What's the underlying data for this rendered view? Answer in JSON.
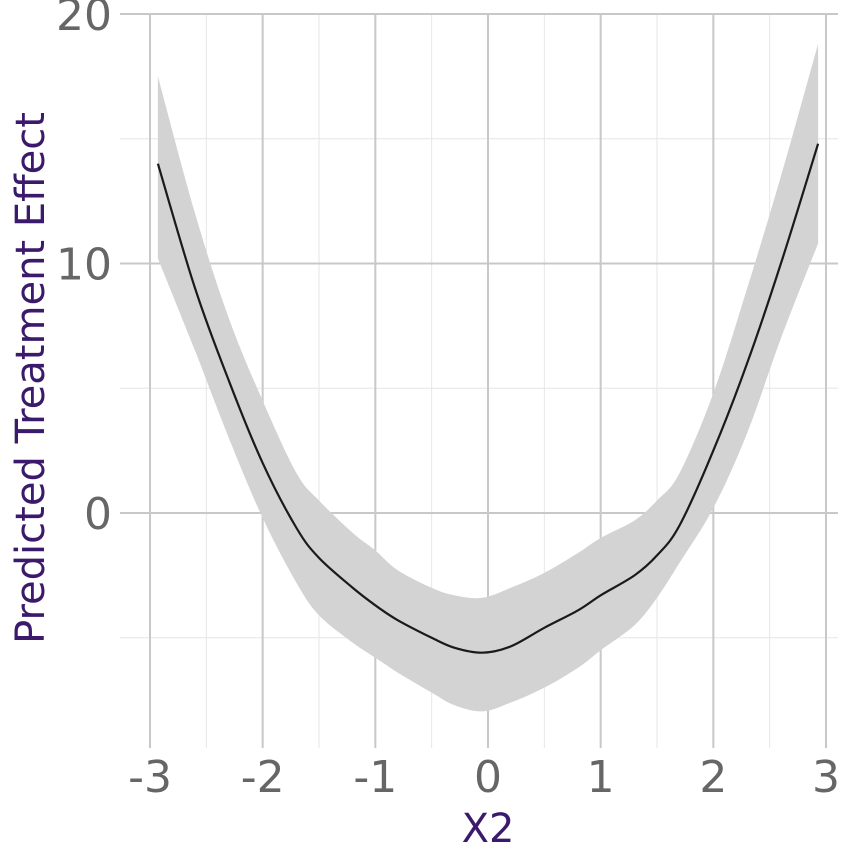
{
  "chart_data": {
    "type": "line",
    "title": "",
    "xlabel": "X2",
    "ylabel": "Predicted Treatment Effect",
    "xlim": [
      -3.0,
      3.0
    ],
    "ylim": [
      -9.5,
      20
    ],
    "x_ticks": [
      -3,
      -2,
      -1,
      0,
      1,
      2,
      3
    ],
    "y_ticks": [
      0,
      10,
      20
    ],
    "grid": true,
    "legend": "none",
    "colors": {
      "band": "#d3d3d3",
      "line": "#1a1a1a",
      "axis_title": "#3b1a6b",
      "tick_label": "#666666",
      "grid": "#c8c8c8"
    },
    "series": [
      {
        "x": [
          -2.93,
          -2.6,
          -2.3,
          -2.0,
          -1.7,
          -1.5,
          -1.2,
          -1.0,
          -0.8,
          -0.5,
          -0.3,
          -0.05,
          0.2,
          0.5,
          0.8,
          1.0,
          1.3,
          1.5,
          1.7,
          2.0,
          2.3,
          2.6,
          2.93
        ],
        "y": [
          14.0,
          9.0,
          5.3,
          2.0,
          -0.6,
          -1.8,
          -3.0,
          -3.7,
          -4.3,
          -5.0,
          -5.4,
          -5.6,
          -5.35,
          -4.6,
          -3.9,
          -3.3,
          -2.5,
          -1.7,
          -0.5,
          2.5,
          6.0,
          10.0,
          14.8
        ],
        "lower": [
          10.2,
          6.5,
          3.0,
          -0.2,
          -2.8,
          -4.1,
          -5.2,
          -5.8,
          -6.4,
          -7.2,
          -7.7,
          -7.95,
          -7.6,
          -7.0,
          -6.2,
          -5.5,
          -4.5,
          -3.4,
          -2.0,
          0.2,
          3.2,
          7.0,
          10.8
        ],
        "upper": [
          17.5,
          12.0,
          7.8,
          4.5,
          1.6,
          0.5,
          -0.8,
          -1.5,
          -2.3,
          -3.0,
          -3.3,
          -3.4,
          -3.0,
          -2.4,
          -1.6,
          -1.0,
          -0.3,
          0.5,
          1.6,
          4.8,
          9.0,
          13.5,
          18.8
        ]
      }
    ]
  }
}
